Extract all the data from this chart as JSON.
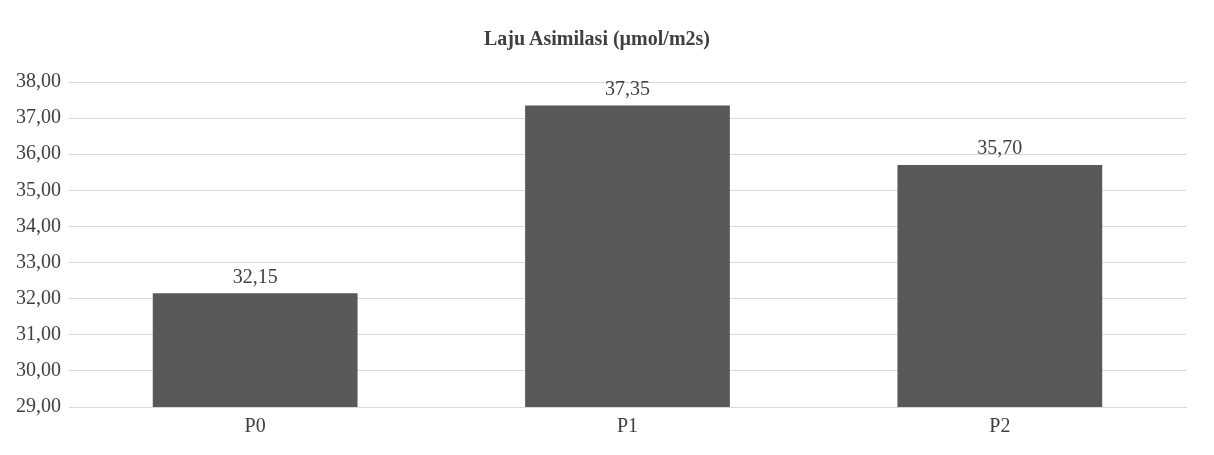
{
  "chart_data": {
    "type": "bar",
    "title": "Laju Asimilasi (µmol/m2s)",
    "categories": [
      "P0",
      "P1",
      "P2"
    ],
    "values": [
      32.15,
      37.35,
      35.7
    ],
    "value_labels": [
      "32,15",
      "37,35",
      "35,70"
    ],
    "color": "#595959",
    "ylim": [
      29,
      38
    ],
    "yticks": [
      {
        "value": 29,
        "label": "29,00"
      },
      {
        "value": 30,
        "label": "30,00"
      },
      {
        "value": 31,
        "label": "31,00"
      },
      {
        "value": 32,
        "label": "32,00"
      },
      {
        "value": 33,
        "label": "33,00"
      },
      {
        "value": 34,
        "label": "34,00"
      },
      {
        "value": 35,
        "label": "35,00"
      },
      {
        "value": 36,
        "label": "36,00"
      },
      {
        "value": 37,
        "label": "37,00"
      },
      {
        "value": 38,
        "label": "38,00"
      }
    ],
    "grid": "y",
    "legend": false
  }
}
